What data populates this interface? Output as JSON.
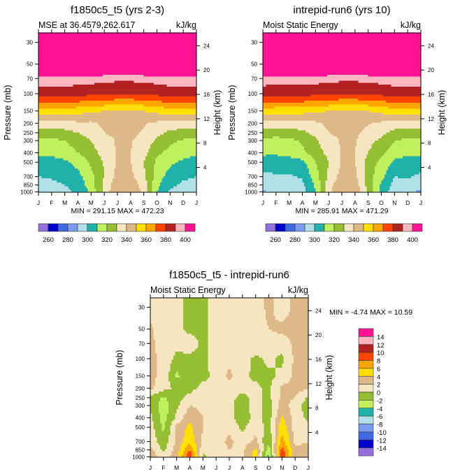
{
  "palette": [
    "#9370db",
    "#0000cd",
    "#4169e1",
    "#7b9cf0",
    "#b0e0e6",
    "#20b2aa",
    "#c0f060",
    "#96be32",
    "#f5e6c0",
    "#deb887",
    "#ffe000",
    "#ffa500",
    "#ff4500",
    "#b22222",
    "#ffb6c1",
    "#ff1493"
  ],
  "chart_data": [
    {
      "type": "heatmap",
      "id": "panel-a",
      "title": "f1850c5_t5 (yrs 2-3)",
      "left_string": "MSE at 36.4579,262.617",
      "right_string": "kJ/kg",
      "ylabel": "Pressure (mb)",
      "ylabel_right": "Height (km)",
      "x_ticks": [
        "J",
        "F",
        "M",
        "A",
        "M",
        "J",
        "J",
        "A",
        "S",
        "O",
        "N",
        "D",
        "J"
      ],
      "y_ticks": [
        "30",
        "50",
        "70",
        "100",
        "150",
        "200",
        "250",
        "300",
        "400",
        "500",
        "700",
        "850",
        "1000"
      ],
      "y_right_ticks": [
        "24",
        "20",
        "16",
        "12",
        "8",
        "4"
      ],
      "stats": "MIN = 291.15 MAX = 472.23",
      "levels": [
        260,
        270,
        280,
        290,
        300,
        310,
        320,
        330,
        340,
        350,
        360,
        370,
        380,
        390,
        400
      ],
      "colorbar_labels": [
        "260",
        "280",
        "300",
        "320",
        "340",
        "360",
        "380",
        "400"
      ],
      "profile_pressure": [
        30,
        50,
        70,
        100,
        150,
        200,
        250,
        300,
        400,
        500,
        700,
        850,
        1000
      ],
      "values_by_month": [
        [
          450,
          430,
          395,
          385,
          355,
          335,
          325,
          318,
          312,
          305,
          300,
          296,
          293
        ],
        [
          450,
          430,
          395,
          385,
          355,
          335,
          325,
          318,
          313,
          306,
          301,
          298,
          295
        ],
        [
          450,
          430,
          395,
          385,
          355,
          336,
          327,
          320,
          315,
          308,
          303,
          300,
          297
        ],
        [
          450,
          430,
          395,
          384,
          354,
          338,
          330,
          325,
          320,
          313,
          307,
          304,
          302
        ],
        [
          450,
          430,
          394,
          383,
          352,
          338,
          334,
          330,
          326,
          322,
          317,
          315,
          312
        ],
        [
          450,
          428,
          393,
          382,
          350,
          342,
          340,
          337,
          334,
          331,
          330,
          333,
          334
        ],
        [
          450,
          428,
          392,
          381,
          348,
          343,
          342,
          341,
          341,
          341,
          344,
          347,
          348
        ],
        [
          450,
          428,
          392,
          381,
          348,
          343,
          342,
          341,
          340,
          340,
          343,
          346,
          348
        ],
        [
          450,
          429,
          393,
          382,
          350,
          341,
          339,
          336,
          333,
          330,
          332,
          336,
          338
        ],
        [
          450,
          430,
          394,
          383,
          353,
          338,
          333,
          328,
          322,
          318,
          315,
          312,
          310
        ],
        [
          450,
          430,
          395,
          385,
          355,
          336,
          328,
          322,
          317,
          312,
          306,
          302,
          299
        ],
        [
          450,
          430,
          395,
          385,
          355,
          335,
          326,
          319,
          314,
          308,
          302,
          298,
          295
        ],
        [
          450,
          430,
          395,
          385,
          355,
          335,
          325,
          318,
          312,
          305,
          300,
          296,
          293
        ]
      ]
    },
    {
      "type": "heatmap",
      "id": "panel-b",
      "title": "intrepid-run6 (yrs 10)",
      "left_string": "Moist Static Energy",
      "right_string": "kJ/kg",
      "ylabel": "Pressure (mb)",
      "ylabel_right": "Height (km)",
      "x_ticks": [
        "J",
        "F",
        "M",
        "A",
        "M",
        "J",
        "J",
        "A",
        "S",
        "O",
        "N",
        "D",
        "J"
      ],
      "y_ticks": [
        "30",
        "50",
        "70",
        "100",
        "150",
        "200",
        "250",
        "300",
        "400",
        "500",
        "700",
        "850",
        "1000"
      ],
      "y_right_ticks": [
        "24",
        "20",
        "16",
        "12",
        "8",
        "4"
      ],
      "stats": "MIN = 285.91 MAX = 471.29",
      "levels": [
        260,
        270,
        280,
        290,
        300,
        310,
        320,
        330,
        340,
        350,
        360,
        370,
        380,
        390,
        400
      ],
      "colorbar_labels": [
        "260",
        "280",
        "300",
        "320",
        "340",
        "360",
        "380",
        "400"
      ],
      "profile_pressure": [
        30,
        50,
        70,
        100,
        150,
        200,
        250,
        300,
        400,
        500,
        700,
        850,
        1000
      ],
      "values_by_month": [
        [
          450,
          430,
          395,
          385,
          355,
          335,
          325,
          318,
          312,
          305,
          298,
          293,
          288
        ],
        [
          450,
          430,
          394,
          384,
          354,
          336,
          324,
          317,
          312,
          304,
          299,
          296,
          294
        ],
        [
          450,
          430,
          394,
          384,
          354,
          336,
          325,
          318,
          313,
          306,
          299,
          296,
          295
        ],
        [
          450,
          430,
          394,
          384,
          354,
          336,
          328,
          321,
          318,
          307,
          301,
          298,
          296
        ],
        [
          450,
          430,
          394,
          383,
          352,
          338,
          333,
          328,
          325,
          320,
          315,
          312,
          310
        ],
        [
          450,
          428,
          393,
          382,
          350,
          342,
          340,
          337,
          333,
          330,
          332,
          336,
          338
        ],
        [
          450,
          428,
          392,
          381,
          348,
          343,
          342,
          341,
          341,
          341,
          344,
          347,
          348
        ],
        [
          450,
          428,
          392,
          381,
          348,
          343,
          342,
          341,
          340,
          340,
          343,
          346,
          348
        ],
        [
          450,
          429,
          393,
          382,
          350,
          341,
          337,
          333,
          330,
          326,
          325,
          326,
          328
        ],
        [
          450,
          430,
          394,
          383,
          353,
          338,
          333,
          328,
          322,
          317,
          313,
          309,
          306
        ],
        [
          450,
          430,
          395,
          385,
          355,
          336,
          327,
          320,
          315,
          308,
          300,
          297,
          294
        ],
        [
          450,
          430,
          395,
          385,
          355,
          335,
          325,
          318,
          312,
          306,
          301,
          297,
          292
        ],
        [
          450,
          430,
          395,
          385,
          355,
          335,
          325,
          318,
          312,
          305,
          298,
          293,
          288
        ]
      ]
    },
    {
      "type": "heatmap",
      "id": "panel-diff",
      "title": "f1850c5_t5 - intrepid-run6",
      "left_string": "Moist Static Energy",
      "right_string": "kJ/kg",
      "ylabel": "Pressure (mb)",
      "ylabel_right": "Height (km)",
      "x_ticks": [
        "J",
        "F",
        "M",
        "A",
        "M",
        "J",
        "J",
        "A",
        "S",
        "O",
        "N",
        "D",
        "J"
      ],
      "y_ticks": [
        "30",
        "50",
        "70",
        "100",
        "150",
        "200",
        "250",
        "300",
        "400",
        "500",
        "700",
        "850",
        "1000"
      ],
      "y_right_ticks": [
        "24",
        "20",
        "16",
        "12",
        "8",
        "4"
      ],
      "stats": "MIN =  -4.74 MAX =  10.59",
      "levels": [
        -14,
        -12,
        -10,
        -8,
        -6,
        -4,
        -2,
        0,
        2,
        4,
        6,
        8,
        10,
        12,
        14
      ],
      "colorbar_labels": [
        "14",
        "12",
        "10",
        "8",
        "6",
        "4",
        "2",
        "0",
        "-2",
        "-4",
        "-6",
        "-8",
        "-10",
        "-12",
        "-14"
      ],
      "profile_pressure": [
        30,
        50,
        70,
        100,
        150,
        200,
        250,
        300,
        400,
        500,
        700,
        850,
        1000
      ],
      "values_by_month": [
        [
          1.0,
          2.5,
          2.5,
          2.5,
          2.5,
          2.5,
          -0.5,
          -0.5,
          0.5,
          1.0,
          1.5,
          2.5,
          4.0
        ],
        [
          0.5,
          0.5,
          1.0,
          1.5,
          1.5,
          0.8,
          -2.5,
          -3.0,
          -3.0,
          -2.5,
          -1.5,
          -0.5,
          0.5
        ],
        [
          0.5,
          0.5,
          0.5,
          -0.5,
          -2.5,
          -0.5,
          -0.5,
          -0.5,
          0.5,
          2.5,
          2.5,
          3.0,
          3.5
        ],
        [
          -0.5,
          -0.5,
          1.0,
          -0.5,
          -0.5,
          -0.5,
          0.5,
          2.0,
          3.5,
          4.5,
          5.5,
          8.0,
          10.0
        ],
        [
          -0.5,
          -0.5,
          -0.5,
          -0.5,
          -0.5,
          0.5,
          1.0,
          1.5,
          2.0,
          2.0,
          1.5,
          0.5,
          -0.5
        ],
        [
          1.0,
          1.0,
          1.0,
          1.0,
          0.5,
          0.5,
          0.5,
          0.5,
          1.0,
          1.0,
          1.0,
          1.0,
          1.0
        ],
        [
          1.0,
          1.0,
          1.0,
          1.5,
          2.5,
          1.0,
          0.5,
          0.5,
          1.0,
          1.5,
          2.5,
          2.0,
          1.0
        ],
        [
          1.0,
          1.0,
          1.0,
          1.0,
          0.5,
          0.5,
          -0.5,
          -1.0,
          -1.5,
          -0.5,
          1.0,
          1.5,
          1.5
        ],
        [
          1.0,
          1.0,
          1.5,
          -0.5,
          -0.5,
          0.5,
          0.5,
          1.0,
          1.0,
          1.5,
          2.5,
          4.5,
          5.0
        ],
        [
          2.5,
          2.0,
          1.0,
          0.5,
          -0.5,
          -0.5,
          -0.5,
          -1.0,
          -1.0,
          -1.0,
          -2.0,
          -3.0,
          -5.0
        ],
        [
          1.0,
          2.5,
          1.0,
          -0.5,
          0.5,
          2.5,
          2.5,
          3.0,
          4.5,
          5.5,
          7.0,
          9.0,
          10.5
        ],
        [
          2.5,
          2.5,
          2.5,
          2.5,
          2.5,
          2.5,
          2.0,
          1.0,
          1.0,
          1.0,
          1.5,
          2.5,
          2.5
        ],
        [
          3.0,
          3.0,
          3.5,
          3.0,
          3.0,
          2.5,
          -0.5,
          -1.0,
          -0.5,
          1.0,
          1.5,
          3.5,
          4.0
        ]
      ]
    }
  ]
}
